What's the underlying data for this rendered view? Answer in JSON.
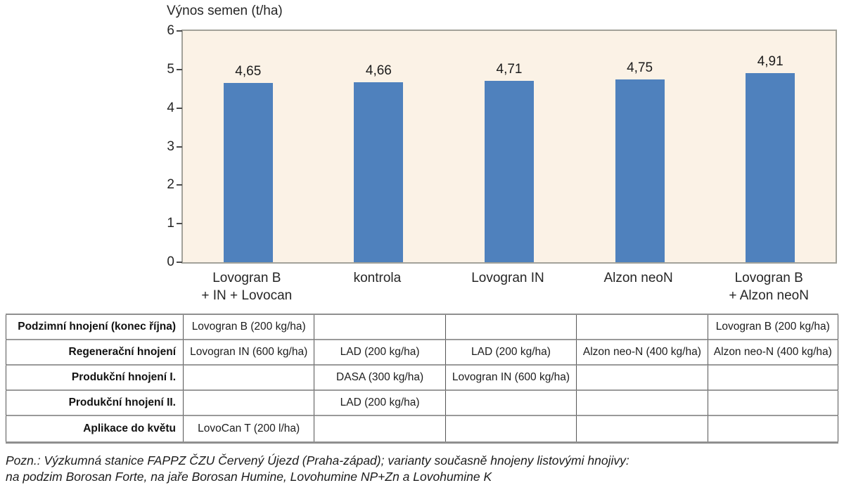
{
  "chart_data": {
    "type": "bar",
    "title": "Výnos semen (t/ha)",
    "categories": [
      "Lovogran B\n+ IN + Lovocan",
      "kontrola",
      "Lovogran IN",
      "Alzon neoN",
      "Lovogran B\n+ Alzon neoN"
    ],
    "values": [
      4.65,
      4.66,
      4.71,
      4.75,
      4.91
    ],
    "value_labels": [
      "4,65",
      "4,66",
      "4,71",
      "4,75",
      "4,91"
    ],
    "xlabel": "",
    "ylabel": "Výnos semen (t/ha)",
    "ylim": [
      0,
      6
    ],
    "yticks": [
      0,
      1,
      2,
      3,
      4,
      5,
      6
    ],
    "grid": false,
    "legend": "none",
    "bar_color": "#4f81bd",
    "plot_background": "#fbf2e6",
    "plot_border_color": "#a3a29a"
  },
  "table": {
    "row_headers": [
      "Podzimní hnojení (konec října)",
      "Regenerační hnojení",
      "Produkční hnojení  I.",
      "Produkční hnojení  II.",
      "Aplikace do květu"
    ],
    "rows": [
      [
        "Lovogran B (200 kg/ha)",
        "",
        "",
        "",
        "Lovogran B (200 kg/ha)"
      ],
      [
        "Lovogran IN (600 kg/ha)",
        "LAD (200 kg/ha)",
        "LAD (200 kg/ha)",
        "Alzon neo-N (400 kg/ha)",
        "Alzon neo-N (400 kg/ha)"
      ],
      [
        "",
        "DASA (300 kg/ha)",
        "Lovogran IN (600 kg/ha)",
        "",
        ""
      ],
      [
        "",
        "LAD (200 kg/ha)",
        "",
        "",
        ""
      ],
      [
        "LovoCan T  (200 l/ha)",
        "",
        "",
        "",
        ""
      ]
    ]
  },
  "footnote": {
    "line1": "Pozn.: Výzkumná stanice FAPPZ ČZU Červený Újezd (Praha-západ); varianty současně hnojeny listovými hnojivy:",
    "line2": "na podzim Borosan Forte, na jaře Borosan Humine, Lovohumine NP+Zn a Lovohumine K"
  }
}
